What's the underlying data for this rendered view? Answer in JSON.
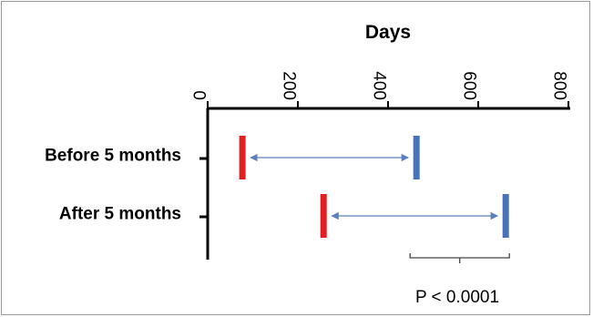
{
  "chart_data": {
    "type": "range-arrow",
    "title": "Days",
    "x_ticks": [
      "0",
      "200",
      "400",
      "600",
      "800"
    ],
    "xlim": [
      0,
      800
    ],
    "categories": [
      "Before 5 months",
      "After 5 months"
    ],
    "series": [
      {
        "name": "",
        "color": "#e02020",
        "values": [
          77,
          257
        ]
      },
      {
        "name": "",
        "color": "#4a72b8",
        "values": [
          463,
          661
        ]
      }
    ],
    "annotation": "P < 0.0001",
    "arrow_color": "#5b7fbf",
    "axis_color": "#000000"
  }
}
